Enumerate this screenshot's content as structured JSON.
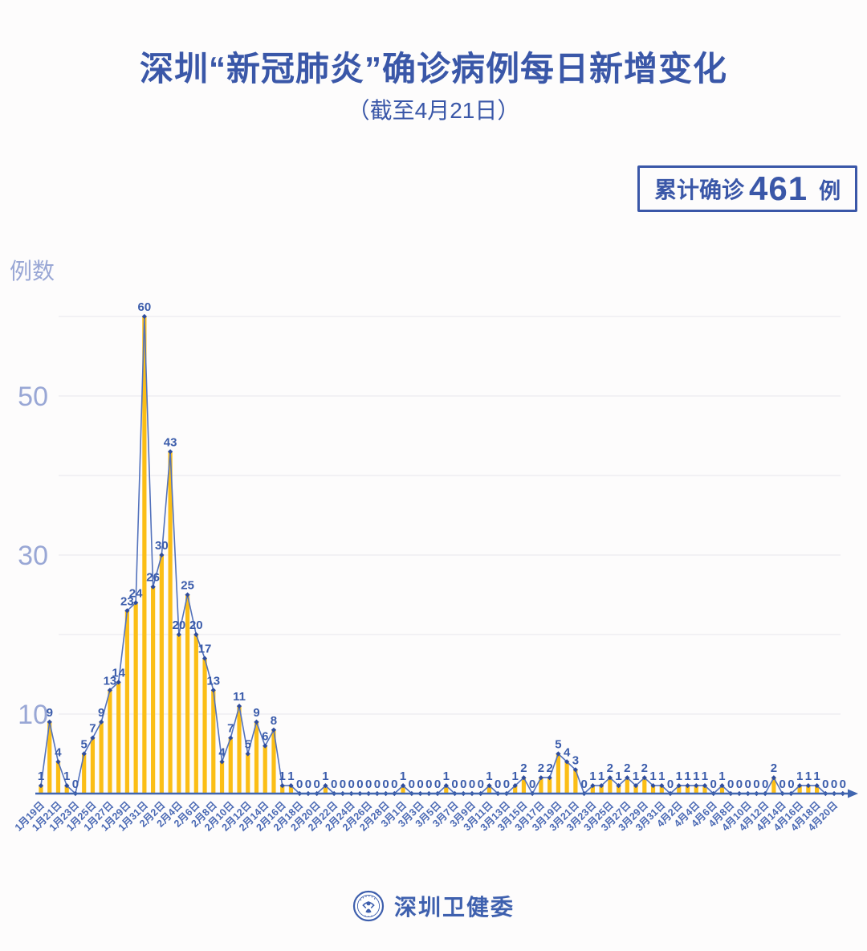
{
  "header": {
    "title": "深圳“新冠肺炎”确诊病例每日新增变化",
    "subtitle": "（截至4月21日）"
  },
  "badge": {
    "prefix": "累计确诊",
    "value": "461",
    "unit": "例"
  },
  "footer": {
    "org_name": "深圳卫健委",
    "logo": "shenzhen-health-commission-emblem"
  },
  "colors": {
    "primary_blue": "#3a57a8",
    "bar_yellow": "#fbbe16",
    "line_blue": "#5372bc",
    "dot_blue": "#2e4c9d",
    "value_label_blue": "#3b5cab",
    "x_label_blue": "#4a69b4",
    "y_tick_blue": "#99a7d5",
    "gridline_gray": "#eceaf0",
    "axis_blue": "#4066b0",
    "background": "#fdfcfc"
  },
  "chart_data": {
    "type": "bar",
    "overlay": "line",
    "title": "深圳“新冠肺炎”确诊病例每日新增变化（截至4月21日）",
    "xlabel": "",
    "ylabel": "例数",
    "ylim": [
      0,
      60
    ],
    "y_ticks": [
      10,
      30,
      50
    ],
    "gridline_values": [
      10,
      20,
      30,
      40,
      50,
      60
    ],
    "grid": true,
    "legend": false,
    "x_label_rotation": -45,
    "x_tick_every": 2,
    "x_tick_labels": [
      "1月19日",
      "1月21日",
      "1月23日",
      "1月25日",
      "1月27日",
      "1月29日",
      "1月31日",
      "2月2日",
      "2月4日",
      "2月6日",
      "2月8日",
      "2月10日",
      "2月12日",
      "2月14日",
      "2月16日",
      "2月18日",
      "2月20日",
      "2月22日",
      "2月24日",
      "2月26日",
      "2月28日",
      "3月1日",
      "3月3日",
      "3月5日",
      "3月7日",
      "3月9日",
      "3月11日",
      "3月13日",
      "3月15日",
      "3月17日",
      "3月19日",
      "3月21日",
      "3月23日",
      "3月25日",
      "3月27日",
      "3月29日",
      "3月31日",
      "4月2日",
      "4月4日",
      "4月6日",
      "4月8日",
      "4月10日",
      "4月12日",
      "4月14日",
      "4月16日",
      "4月18日",
      "4月20日"
    ],
    "values": [
      1,
      9,
      4,
      1,
      0,
      5,
      7,
      9,
      13,
      14,
      23,
      24,
      60,
      26,
      30,
      43,
      20,
      25,
      20,
      17,
      13,
      4,
      7,
      11,
      5,
      9,
      6,
      8,
      1,
      1,
      0,
      0,
      0,
      1,
      0,
      0,
      0,
      0,
      0,
      0,
      0,
      0,
      1,
      0,
      0,
      0,
      0,
      1,
      0,
      0,
      0,
      0,
      1,
      0,
      0,
      1,
      2,
      0,
      2,
      2,
      5,
      4,
      3,
      0,
      1,
      1,
      2,
      1,
      2,
      1,
      2,
      1,
      1,
      0,
      1,
      1,
      1,
      1,
      0,
      1,
      0,
      0,
      0,
      0,
      0,
      2,
      0,
      0,
      1,
      1,
      1,
      0,
      0,
      0
    ],
    "value_labels_shown": true,
    "total": 461
  }
}
